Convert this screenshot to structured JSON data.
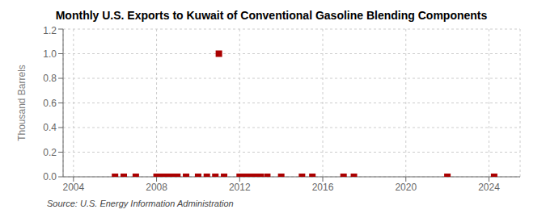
{
  "chart_data": {
    "type": "scatter",
    "title": "Monthly U.S. Exports to Kuwait of Conventional Gasoline Blending Components",
    "y_label": "Thousand Barrels",
    "annotations": [
      "Source: U.S. Energy Information Administration"
    ],
    "x": [
      2006.0,
      2006.42,
      2007.0,
      2008.0,
      2008.17,
      2008.33,
      2008.58,
      2008.75,
      2009.0,
      2009.42,
      2010.0,
      2010.42,
      2010.83,
      2011.0,
      2011.25,
      2012.0,
      2012.17,
      2012.33,
      2012.58,
      2012.75,
      2013.0,
      2013.33,
      2014.0,
      2015.0,
      2015.5,
      2017.0,
      2017.5,
      2022.0,
      2024.25
    ],
    "values": [
      0.0,
      0.0,
      0.0,
      0.0,
      0.0,
      0.0,
      0.0,
      0.0,
      0.0,
      0.0,
      0.0,
      0.0,
      0.0,
      1.0,
      0.0,
      0.0,
      0.0,
      0.0,
      0.0,
      0.0,
      0.0,
      0.0,
      0.0,
      0.0,
      0.0,
      0.0,
      0.0,
      0.0,
      0.0
    ],
    "color": "#aa0000",
    "marker": "square",
    "xlim": [
      2003.5,
      2025.5
    ],
    "ylim": [
      0,
      1.2
    ],
    "xticks": [
      2004,
      2008,
      2012,
      2016,
      2020,
      2024
    ],
    "yticks": [
      {
        "value": 0,
        "label": "0.0"
      },
      0.2,
      0.4,
      0.6,
      0.8,
      {
        "value": 1,
        "label": "1.0"
      },
      1.2
    ],
    "grid": true
  }
}
